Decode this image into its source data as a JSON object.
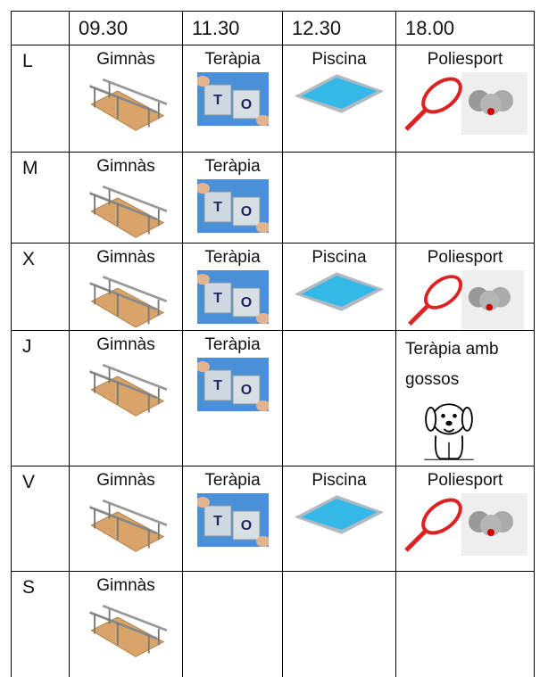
{
  "table": {
    "header": [
      "09.30",
      "11.30",
      "12.30",
      "18.00"
    ],
    "rows": [
      {
        "day": "L",
        "cells": [
          "Gimnàs",
          "Teràpia",
          "Piscina",
          "Poliesport"
        ]
      },
      {
        "day": "M",
        "cells": [
          "Gimnàs",
          "Teràpia",
          null,
          null
        ]
      },
      {
        "day": "X",
        "cells": [
          "Gimnàs",
          "Teràpia",
          "Piscina",
          "Poliesport"
        ]
      },
      {
        "day": "J",
        "cells": [
          "Gimnàs",
          "Teràpia",
          null,
          "Teràpia amb gossos"
        ]
      },
      {
        "day": "V",
        "cells": [
          "Gimnàs",
          "Teràpia",
          "Piscina",
          "Poliesport"
        ]
      },
      {
        "day": "S",
        "cells": [
          "Gimnàs",
          null,
          null,
          null
        ]
      }
    ]
  }
}
